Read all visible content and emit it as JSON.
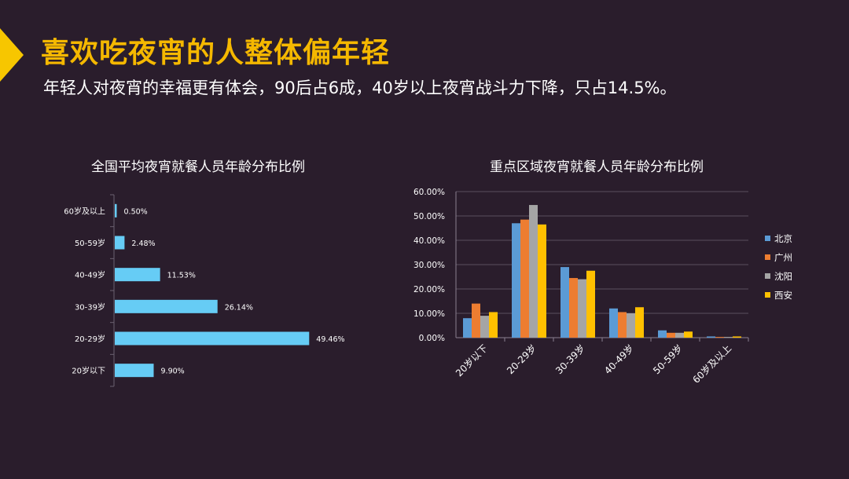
{
  "header": {
    "title": "喜欢吃夜宵的人整体偏年轻",
    "subtitle": "年轻人对夜宵的幸福更有体会，90后占6成，40岁以上夜宵战斗力下降，只占14.5%。"
  },
  "colors": {
    "background": "#2a1d2c",
    "accent": "#f7c600",
    "title": "#f5b800",
    "bar_national": "#66ccf5"
  },
  "chart_data": [
    {
      "type": "bar",
      "orientation": "horizontal",
      "title": "全国平均夜宵就餐人员年龄分布比例",
      "categories": [
        "60岁及以上",
        "50-59岁",
        "40-49岁",
        "30-39岁",
        "20-29岁",
        "20岁以下"
      ],
      "values": [
        0.5,
        2.48,
        11.53,
        26.14,
        49.46,
        9.9
      ],
      "value_labels": [
        "0.50%",
        "2.48%",
        "11.53%",
        "26.14%",
        "49.46%",
        "9.90%"
      ],
      "xlim": [
        0,
        55
      ],
      "grid": false
    },
    {
      "type": "bar",
      "title": "重点区域夜宵就餐人员年龄分布比例",
      "categories": [
        "20岁以下",
        "20-29岁",
        "30-39岁",
        "40-49岁",
        "50-59岁",
        "60岁及以上"
      ],
      "yticks": [
        "0.00%",
        "10.00%",
        "20.00%",
        "30.00%",
        "40.00%",
        "50.00%",
        "60.00%"
      ],
      "ylim": [
        0,
        60
      ],
      "grid": true,
      "legend_position": "right",
      "series": [
        {
          "name": "北京",
          "color": "#5b9bd5",
          "values": [
            8.0,
            47.0,
            29.0,
            12.0,
            3.0,
            0.5
          ]
        },
        {
          "name": "广州",
          "color": "#ed7d31",
          "values": [
            14.0,
            48.5,
            24.5,
            10.5,
            2.0,
            0.3
          ]
        },
        {
          "name": "沈阳",
          "color": "#a5a5a5",
          "values": [
            9.0,
            54.5,
            24.0,
            10.0,
            2.0,
            0.3
          ]
        },
        {
          "name": "西安",
          "color": "#ffc000",
          "values": [
            10.5,
            46.5,
            27.5,
            12.5,
            2.5,
            0.5
          ]
        }
      ]
    }
  ]
}
